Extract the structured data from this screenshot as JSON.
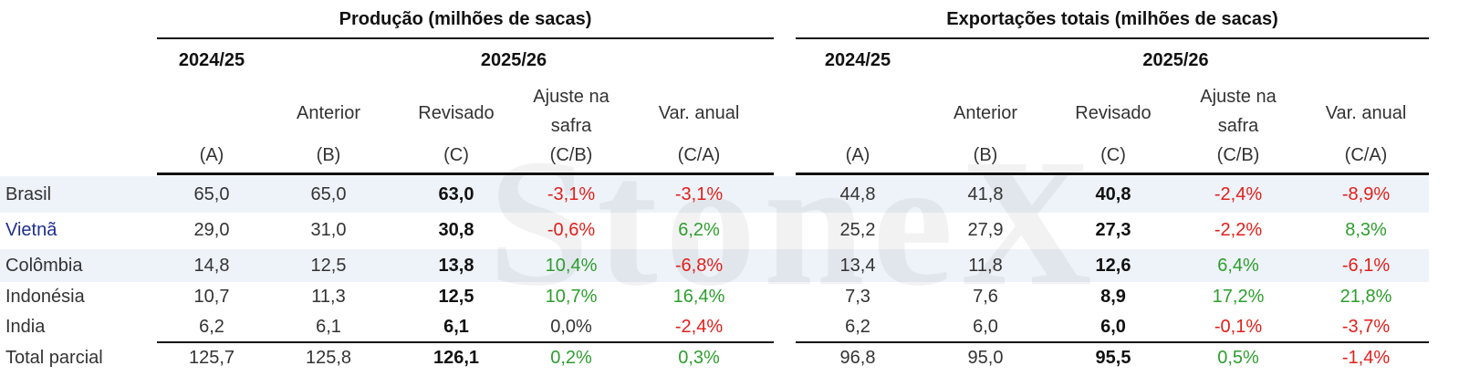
{
  "watermark": "StoneX",
  "groups": [
    {
      "title": "Produção  (milhões de sacas)",
      "year_prev": "2024/25",
      "year_curr": "2025/26"
    },
    {
      "title": "Exportações totais (milhões de sacas)",
      "year_prev": "2024/25",
      "year_curr": "2025/26"
    }
  ],
  "columns": [
    {
      "code": "(A)"
    },
    {
      "label": "Anterior",
      "code": "(B)"
    },
    {
      "label": "Revisado",
      "code": "(C)"
    },
    {
      "label": "Ajuste na safra",
      "code": "(C/B)"
    },
    {
      "label": "Var. anual",
      "code": "(C/A)"
    }
  ],
  "rows": [
    {
      "label": "Brasil",
      "values": [
        "65,0",
        "65,0",
        "63,0",
        "-3,1%",
        "-3,1%",
        "44,8",
        "41,8",
        "40,8",
        "-2,4%",
        "-8,9%"
      ]
    },
    {
      "label": "Vietnã",
      "values": [
        "29,0",
        "31,0",
        "30,8",
        "-0,6%",
        "6,2%",
        "25,2",
        "27,9",
        "27,3",
        "-2,2%",
        "8,3%"
      ]
    },
    {
      "label": "Colômbia",
      "values": [
        "14,8",
        "12,5",
        "13,8",
        "10,4%",
        "-6,8%",
        "13,4",
        "11,8",
        "12,6",
        "6,4%",
        "-6,1%"
      ]
    },
    {
      "label": "Indonésia",
      "values": [
        "10,7",
        "11,3",
        "12,5",
        "10,7%",
        "16,4%",
        "7,3",
        "7,6",
        "8,9",
        "17,2%",
        "21,8%"
      ]
    },
    {
      "label": "India",
      "values": [
        "6,2",
        "6,1",
        "6,1",
        "0,0%",
        "-2,4%",
        "6,2",
        "6,0",
        "6,0",
        "-0,1%",
        "-3,7%"
      ]
    },
    {
      "label": "Total parcial",
      "values": [
        "125,7",
        "125,8",
        "126,1",
        "0,2%",
        "0,3%",
        "96,8",
        "95,0",
        "95,5",
        "0,5%",
        "-1,4%"
      ]
    }
  ]
}
